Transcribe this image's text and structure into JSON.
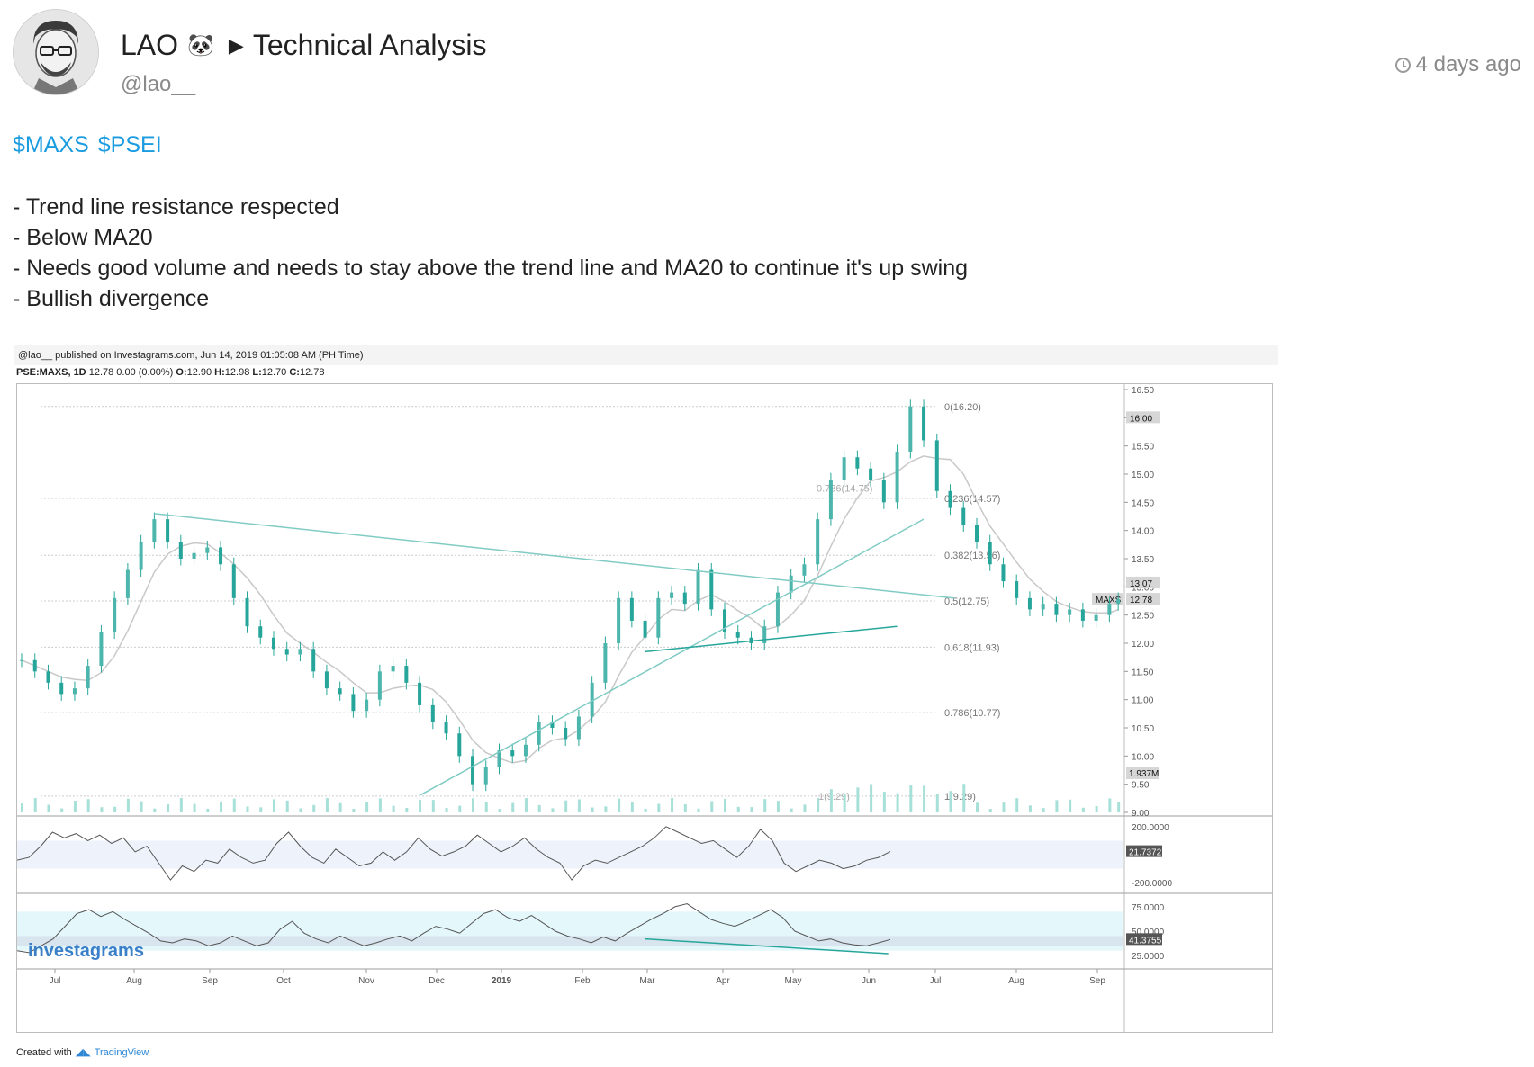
{
  "post": {
    "author_name": "LAO",
    "author_emoji": "🐼",
    "category": "Technical Analysis",
    "handle": "@lao__",
    "timestamp": "4 days ago",
    "tags": [
      "$MAXS",
      "$PSEI"
    ],
    "bullets": [
      "- Trend line resistance respected",
      "- Below MA20",
      "- Needs good volume and needs to stay above the trend line and MA20 to continue it's up swing",
      "- Bullish divergence"
    ]
  },
  "chart": {
    "published": "@lao__ published on Investagrams.com, Jun 14, 2019 01:05:08 AM (PH Time)",
    "symbol": "PSE:MAXS, 1D",
    "last": "12.78",
    "change": "0.00 (0.00%)",
    "ohlc": {
      "o": "12.90",
      "h": "12.98",
      "l": "12.70",
      "c": "12.78"
    },
    "watermark": "investagrams",
    "footer_label": "Created with",
    "footer_brand": "TradingView",
    "colors": {
      "up": "#4db6ac",
      "down": "#26a69a",
      "trend": "#80cbc4",
      "ma": "#c8c8c8"
    }
  },
  "chart_data": {
    "type": "line",
    "x_ticks": [
      "Jul",
      "Aug",
      "Sep",
      "Oct",
      "Nov",
      "Dec",
      "2019",
      "Feb",
      "Mar",
      "Apr",
      "May",
      "Jun",
      "Jul",
      "Aug",
      "Sep"
    ],
    "price_ticks": [
      "16.50",
      "16.00",
      "15.50",
      "15.00",
      "14.50",
      "14.00",
      "13.50",
      "13.00",
      "12.50",
      "12.00",
      "11.50",
      "11.00",
      "10.50",
      "10.00",
      "9.50",
      "9.00"
    ],
    "ylim": [
      9.0,
      16.5
    ],
    "price_x": [
      0,
      3,
      6,
      9,
      12,
      15,
      18,
      21,
      24,
      27,
      30,
      33,
      36,
      39,
      42,
      45,
      48,
      51,
      54,
      57,
      60,
      63,
      66,
      69,
      72,
      75,
      78,
      81,
      84,
      87,
      90,
      93,
      96,
      99,
      102,
      105,
      108,
      111,
      114,
      117,
      120,
      123,
      126,
      129,
      132,
      135,
      138,
      141,
      144,
      147,
      150,
      153,
      156,
      159,
      162,
      165,
      168,
      171,
      174,
      177,
      180,
      183,
      186,
      189,
      192,
      195,
      198,
      201,
      204,
      207,
      210,
      213,
      216,
      219,
      222,
      225,
      228,
      231,
      234,
      237,
      240,
      243,
      246,
      248
    ],
    "price": [
      11.7,
      11.5,
      11.3,
      11.1,
      11.2,
      11.6,
      12.2,
      12.8,
      13.3,
      13.8,
      14.2,
      13.8,
      13.5,
      13.6,
      13.7,
      13.4,
      12.8,
      12.3,
      12.1,
      11.9,
      11.8,
      11.9,
      11.5,
      11.2,
      11.1,
      10.8,
      11.0,
      11.5,
      11.6,
      11.3,
      10.9,
      10.6,
      10.4,
      10.0,
      9.5,
      9.8,
      10.1,
      10.0,
      10.2,
      10.6,
      10.5,
      10.3,
      10.7,
      11.3,
      12.0,
      12.8,
      12.4,
      12.1,
      12.8,
      12.9,
      12.7,
      13.3,
      12.6,
      12.2,
      12.1,
      12.0,
      12.3,
      12.9,
      13.2,
      13.4,
      14.2,
      14.9,
      15.3,
      15.1,
      14.9,
      14.5,
      15.4,
      16.2,
      15.6,
      14.7,
      14.4,
      14.1,
      13.8,
      13.4,
      13.1,
      12.8,
      12.6,
      12.7,
      12.5,
      12.6,
      12.4,
      12.5,
      12.7,
      12.78
    ],
    "ma20_label": "MA20",
    "fibonacci": [
      {
        "level": "0(16.20)",
        "value": 16.2
      },
      {
        "level": "0.236(14.57)",
        "value": 14.57
      },
      {
        "level": "0.382(13.56)",
        "value": 13.56
      },
      {
        "level": "0.5(12.75)",
        "value": 12.75
      },
      {
        "level": "0.618(11.93)",
        "value": 11.93
      },
      {
        "level": "0.786(10.77)",
        "value": 10.77
      },
      {
        "level": "1(9.29)",
        "value": 9.29
      }
    ],
    "fib_inner": [
      {
        "label": "0.786(14.75)",
        "value": 14.75
      },
      {
        "label": "1(9.29)",
        "value": 9.29
      }
    ],
    "price_badges": [
      {
        "label": "16.00",
        "value": 16.0
      },
      {
        "label": "13.07",
        "value": 13.07
      },
      {
        "label": "12.78",
        "value": 12.78
      }
    ],
    "last_tag": "MAXS",
    "volume_badge": "1.937M",
    "cci": {
      "ticks": [
        "200.0000",
        "-200.0000"
      ],
      "badge": "21.7372",
      "values": [
        -40,
        -20,
        60,
        160,
        120,
        150,
        100,
        140,
        80,
        120,
        20,
        60,
        -60,
        -180,
        -80,
        -120,
        -40,
        -60,
        40,
        -20,
        -60,
        -40,
        80,
        160,
        60,
        -20,
        -60,
        40,
        -20,
        -80,
        -60,
        20,
        -40,
        20,
        120,
        40,
        -10,
        20,
        60,
        140,
        80,
        20,
        60,
        120,
        40,
        -20,
        -60,
        -180,
        -80,
        -40,
        -60,
        -20,
        20,
        60,
        120,
        200,
        160,
        120,
        80,
        100,
        40,
        -20,
        60,
        180,
        100,
        -60,
        -120,
        -80,
        -40,
        -60,
        -100,
        -80,
        -40,
        -20,
        21.7
      ]
    },
    "rsi": {
      "ticks": [
        "75.0000",
        "50.0000",
        "25.0000"
      ],
      "badge": "41.3755",
      "values": [
        30,
        28,
        35,
        42,
        55,
        68,
        72,
        65,
        70,
        62,
        55,
        48,
        40,
        38,
        42,
        40,
        35,
        38,
        45,
        40,
        35,
        38,
        52,
        60,
        48,
        42,
        38,
        45,
        40,
        35,
        38,
        42,
        45,
        40,
        48,
        55,
        52,
        48,
        58,
        68,
        72,
        64,
        60,
        66,
        58,
        50,
        45,
        42,
        38,
        44,
        40,
        48,
        55,
        62,
        68,
        75,
        78,
        70,
        62,
        58,
        55,
        60,
        66,
        72,
        64,
        50,
        45,
        40,
        42,
        38,
        36,
        35,
        38,
        41.4
      ]
    }
  }
}
